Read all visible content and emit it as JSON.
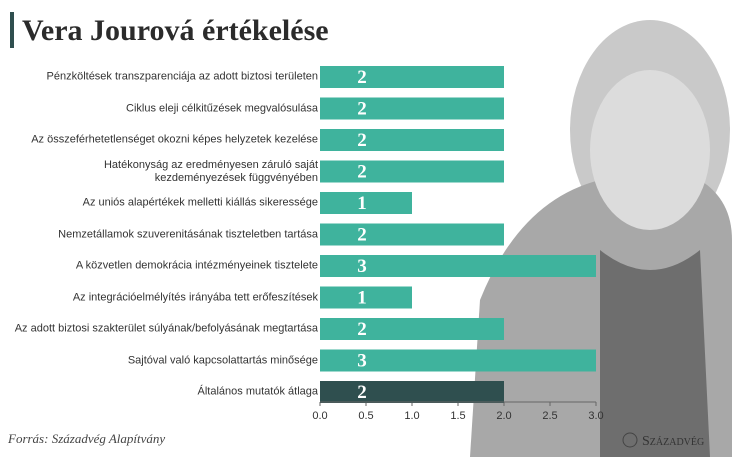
{
  "chart_data": {
    "type": "bar",
    "orientation": "horizontal",
    "title": "Vera Jourová értékelése",
    "categories": [
      "Pénzköltések transzparenciája az adott biztosi területen",
      "Ciklus eleji célkitűzések megvalósulása",
      "Az összeférhetetlenséget okozni képes helyzetek kezelése",
      "Hatékonyság az eredményesen záruló saját\nkezdeményezések függvényében",
      "Az uniós alapértékek melletti kiállás sikeressége",
      "Nemzetállamok szuverenitásának tiszteletben tartása",
      "A közvetlen demokrácia intézményeinek tisztelete",
      "Az integrációelmélyítés irányába tett erőfeszítések",
      "Az adott biztosi szakterület súlyának/befolyásának megtartása",
      "Sajtóval való kapcsolattartás minősége",
      "Általános mutatók átlaga"
    ],
    "values": [
      2,
      2,
      2,
      2,
      1,
      2,
      3,
      1,
      2,
      3,
      2
    ],
    "colors": [
      "#3fb39d",
      "#3fb39d",
      "#3fb39d",
      "#3fb39d",
      "#3fb39d",
      "#3fb39d",
      "#3fb39d",
      "#3fb39d",
      "#3fb39d",
      "#3fb39d",
      "#2f4f4f"
    ],
    "xlim": [
      0,
      3
    ],
    "xticks": [
      {
        "value": 0,
        "label": "0.0"
      },
      0.5,
      {
        "value": 1,
        "label": "1.0"
      },
      1.5,
      {
        "value": 2,
        "label": "2.0"
      },
      2.5,
      {
        "value": 3,
        "label": "3.0"
      }
    ],
    "source": "Forrás: Századvég Alapítvány",
    "logo": "Századvég"
  }
}
